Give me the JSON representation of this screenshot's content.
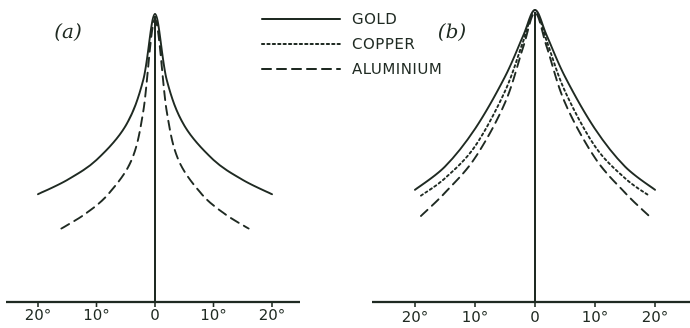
{
  "legend": {
    "entries": [
      {
        "label": "GOLD",
        "style": "solid"
      },
      {
        "label": "COPPER",
        "style": "dotted"
      },
      {
        "label": "ALUMINIUM",
        "style": "dashed"
      }
    ]
  },
  "colors": {
    "ink": "#1f2a22",
    "background": "#ffffff"
  },
  "chart_data": [
    {
      "type": "line",
      "title": "",
      "panel_label": "(a)",
      "xlabel": "",
      "ylabel": "",
      "x_ticks": [
        "20°",
        "10°",
        "0",
        "10°",
        "20°"
      ],
      "xlim": [
        -22,
        22
      ],
      "ylim": [
        0,
        1.0
      ],
      "grid": false,
      "series": [
        {
          "name": "GOLD",
          "style": "solid",
          "x": [
            -20,
            -15,
            -10,
            -5,
            -2,
            0,
            2,
            5,
            10,
            15,
            20
          ],
          "y": [
            0.37,
            0.42,
            0.49,
            0.61,
            0.77,
            1.0,
            0.77,
            0.61,
            0.49,
            0.42,
            0.37
          ]
        },
        {
          "name": "ALUMINIUM",
          "style": "dashed",
          "x": [
            -16,
            -12,
            -8,
            -4,
            -2,
            0,
            2,
            4,
            8,
            12,
            16
          ],
          "y": [
            0.25,
            0.3,
            0.37,
            0.49,
            0.66,
            0.98,
            0.66,
            0.49,
            0.37,
            0.3,
            0.25
          ]
        }
      ]
    },
    {
      "type": "line",
      "title": "",
      "panel_label": "(b)",
      "xlabel": "",
      "ylabel": "",
      "x_ticks": [
        "20°",
        "10°",
        "0",
        "10°",
        "20°"
      ],
      "xlim": [
        -22,
        22
      ],
      "ylim": [
        0,
        1.0
      ],
      "grid": false,
      "series": [
        {
          "name": "GOLD",
          "style": "solid",
          "x": [
            -20,
            -15,
            -10,
            -5,
            -2,
            0,
            2,
            5,
            10,
            15,
            20
          ],
          "y": [
            0.38,
            0.46,
            0.59,
            0.77,
            0.91,
            1.0,
            0.91,
            0.77,
            0.59,
            0.46,
            0.38
          ]
        },
        {
          "name": "COPPER",
          "style": "dotted",
          "x": [
            -19,
            -15,
            -10,
            -5,
            -2,
            0,
            2,
            5,
            10,
            15,
            19
          ],
          "y": [
            0.36,
            0.42,
            0.53,
            0.72,
            0.89,
            1.0,
            0.89,
            0.72,
            0.53,
            0.42,
            0.36
          ]
        },
        {
          "name": "ALUMINIUM",
          "style": "dashed",
          "x": [
            -19,
            -15,
            -10,
            -5,
            -2,
            0,
            2,
            5,
            10,
            15,
            19
          ],
          "y": [
            0.29,
            0.37,
            0.49,
            0.68,
            0.87,
            0.99,
            0.87,
            0.68,
            0.49,
            0.37,
            0.29
          ]
        }
      ]
    }
  ]
}
